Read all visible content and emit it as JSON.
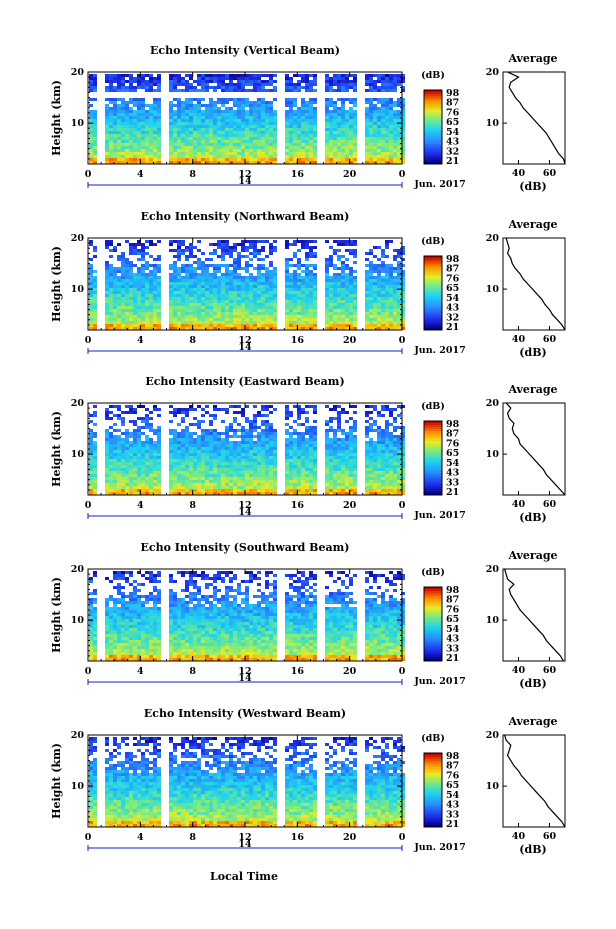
{
  "chart_data": [
    {
      "type": "heatmap",
      "title": "Echo Intensity (Vertical Beam)",
      "ylabel": "Height (km)",
      "xticks": [
        "0",
        "4",
        "8",
        "12",
        "16",
        "20",
        "0"
      ],
      "ylim": [
        2,
        20
      ],
      "yticks": [
        "10",
        "20"
      ],
      "day_label": "14",
      "date_label": "Jun. 2017",
      "colorbar_title": "(dB)",
      "colorbar_ticks": [
        "98",
        "87",
        "76",
        "65",
        "54",
        "43",
        "32",
        "21"
      ],
      "profile": {
        "title": "Average",
        "xlabel": "(dB)",
        "xticks": [
          "40",
          "60"
        ],
        "yticks": [
          "10",
          "20"
        ],
        "height_km": [
          2,
          3,
          4,
          5,
          6,
          7,
          8,
          9,
          10,
          11,
          12,
          13,
          14,
          15,
          16,
          17,
          18,
          19,
          20
        ],
        "db": [
          70,
          69,
          66,
          64,
          62,
          60,
          58,
          55,
          52,
          49,
          46,
          43,
          41,
          38,
          36,
          34,
          35,
          40,
          33
        ]
      }
    },
    {
      "type": "heatmap",
      "title": "Echo Intensity (Northward Beam)",
      "ylabel": "Height (km)",
      "xticks": [
        "0",
        "4",
        "8",
        "12",
        "16",
        "20",
        "0"
      ],
      "ylim": [
        2,
        20
      ],
      "yticks": [
        "10",
        "20"
      ],
      "day_label": "14",
      "date_label": "Jun. 2017",
      "colorbar_title": "(dB)",
      "colorbar_ticks": [
        "98",
        "87",
        "76",
        "65",
        "54",
        "43",
        "32",
        "21"
      ],
      "profile": {
        "title": "Average",
        "xlabel": "(dB)",
        "xticks": [
          "40",
          "60"
        ],
        "yticks": [
          "10",
          "20"
        ],
        "height_km": [
          2,
          3,
          4,
          5,
          6,
          7,
          8,
          9,
          10,
          11,
          12,
          13,
          14,
          15,
          16,
          17,
          18,
          19,
          20
        ],
        "db": [
          70,
          68,
          65,
          62,
          60,
          57,
          55,
          52,
          49,
          46,
          43,
          41,
          38,
          36,
          35,
          33,
          34,
          33,
          32
        ]
      }
    },
    {
      "type": "heatmap",
      "title": "Echo Intensity (Eastward Beam)",
      "ylabel": "Height (km)",
      "xticks": [
        "0",
        "4",
        "8",
        "12",
        "16",
        "20",
        "0"
      ],
      "ylim": [
        2,
        20
      ],
      "yticks": [
        "10",
        "20"
      ],
      "day_label": "14",
      "date_label": "Jun. 2017",
      "colorbar_title": "(dB)",
      "colorbar_ticks": [
        "98",
        "87",
        "76",
        "65",
        "54",
        "43",
        "33",
        "21"
      ],
      "profile": {
        "title": "Average",
        "xlabel": "(dB)",
        "xticks": [
          "40",
          "60"
        ],
        "yticks": [
          "10",
          "20"
        ],
        "height_km": [
          2,
          3,
          4,
          5,
          6,
          7,
          8,
          9,
          10,
          11,
          12,
          13,
          14,
          15,
          16,
          17,
          18,
          19,
          20
        ],
        "db": [
          70,
          67,
          64,
          61,
          58,
          56,
          53,
          50,
          47,
          44,
          41,
          40,
          37,
          36,
          37,
          34,
          33,
          35,
          32
        ]
      }
    },
    {
      "type": "heatmap",
      "title": "Echo Intensity (Southward Beam)",
      "ylabel": "Height (km)",
      "xticks": [
        "0",
        "4",
        "8",
        "12",
        "16",
        "20",
        "0"
      ],
      "ylim": [
        2,
        20
      ],
      "yticks": [
        "10",
        "20"
      ],
      "day_label": "14",
      "date_label": "Jun. 2017",
      "colorbar_title": "(dB)",
      "colorbar_ticks": [
        "98",
        "87",
        "76",
        "65",
        "54",
        "43",
        "33",
        "21"
      ],
      "profile": {
        "title": "Average",
        "xlabel": "(dB)",
        "xticks": [
          "40",
          "60"
        ],
        "yticks": [
          "10",
          "20"
        ],
        "height_km": [
          2,
          3,
          4,
          5,
          6,
          7,
          8,
          9,
          10,
          11,
          12,
          13,
          14,
          15,
          16,
          17,
          18,
          19,
          20
        ],
        "db": [
          69,
          67,
          64,
          61,
          58,
          56,
          53,
          50,
          47,
          44,
          41,
          39,
          37,
          35,
          34,
          37,
          33,
          32,
          31
        ]
      }
    },
    {
      "type": "heatmap",
      "title": "Echo Intensity (Westward Beam)",
      "ylabel": "Height (km)",
      "xticks": [
        "0",
        "4",
        "8",
        "12",
        "16",
        "20",
        "0"
      ],
      "ylim": [
        2,
        20
      ],
      "yticks": [
        "10",
        "20"
      ],
      "day_label": "14",
      "date_label": "Jun. 2017",
      "colorbar_title": "(dB)",
      "colorbar_ticks": [
        "98",
        "87",
        "76",
        "65",
        "54",
        "43",
        "33",
        "21"
      ],
      "profile": {
        "title": "Average",
        "xlabel": "(dB)",
        "xticks": [
          "40",
          "60"
        ],
        "yticks": [
          "10",
          "20"
        ],
        "height_km": [
          2,
          3,
          4,
          5,
          6,
          7,
          8,
          9,
          10,
          11,
          12,
          13,
          14,
          15,
          16,
          17,
          18,
          19,
          20
        ],
        "db": [
          70,
          68,
          65,
          62,
          59,
          57,
          54,
          51,
          48,
          45,
          42,
          40,
          37,
          35,
          33,
          34,
          35,
          32,
          31
        ]
      }
    }
  ],
  "xlabel": "Local Time"
}
